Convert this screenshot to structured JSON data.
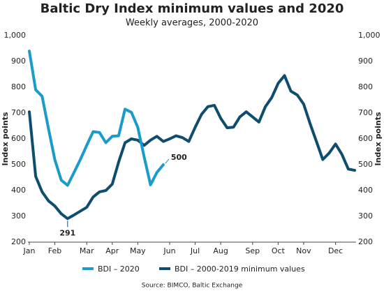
{
  "chart_data": {
    "type": "line",
    "title": "Baltic Dry Index minimum values and 2020",
    "subtitle": "Weekly averages, 2000-2020",
    "y_label": "Index points",
    "y2_label": "Index points",
    "source": "Source: BIMCO, Baltic Exchange",
    "annotations": [
      "291",
      "500"
    ],
    "categories": [
      "Jan",
      null,
      null,
      null,
      "Feb",
      null,
      null,
      null,
      null,
      "Mar",
      null,
      null,
      null,
      "Apr",
      null,
      null,
      null,
      "May",
      null,
      null,
      null,
      null,
      "Jun",
      null,
      null,
      null,
      "Jul",
      null,
      null,
      null,
      "Aug",
      null,
      null,
      null,
      null,
      "Sep",
      null,
      null,
      null,
      "Oct",
      null,
      null,
      null,
      "Nov",
      null,
      null,
      null,
      null,
      "Dec",
      null,
      null,
      null
    ],
    "series": [
      {
        "name": "BDI – 2020",
        "color": "#1a9bc9",
        "values": [
          940,
          790,
          765,
          640,
          520,
          440,
          420,
          470,
          520,
          575,
          628,
          625,
          585,
          610,
          612,
          715,
          703,
          645,
          530,
          422,
          470,
          500,
          null,
          null,
          null,
          null,
          null,
          null,
          null,
          null,
          null,
          null,
          null,
          null,
          null,
          null,
          null,
          null,
          null,
          null,
          null,
          null,
          null,
          null,
          null,
          null,
          null,
          null,
          null,
          null,
          null,
          null
        ]
      },
      {
        "name": "BDI – 2000-2019 minimum values",
        "color": "#0e4d6e",
        "values": [
          705,
          455,
          395,
          360,
          340,
          310,
          291,
          305,
          320,
          335,
          375,
          395,
          400,
          425,
          510,
          585,
          600,
          595,
          575,
          595,
          610,
          590,
          600,
          612,
          605,
          590,
          645,
          695,
          725,
          730,
          680,
          643,
          645,
          685,
          705,
          685,
          665,
          725,
          760,
          815,
          845,
          785,
          770,
          735,
          660,
          590,
          520,
          545,
          580,
          540,
          483,
          478
        ]
      }
    ],
    "ylim": [
      200,
      1000
    ],
    "yticks": [
      200,
      300,
      400,
      500,
      600,
      700,
      800,
      900,
      {
        "value": 1000,
        "label": "1,000"
      }
    ],
    "y2lim": [
      200,
      1000
    ],
    "y2ticks": [
      200,
      300,
      400,
      500,
      600,
      700,
      800,
      900,
      {
        "value": 1000,
        "label": "1,000"
      }
    ],
    "grid": false
  }
}
